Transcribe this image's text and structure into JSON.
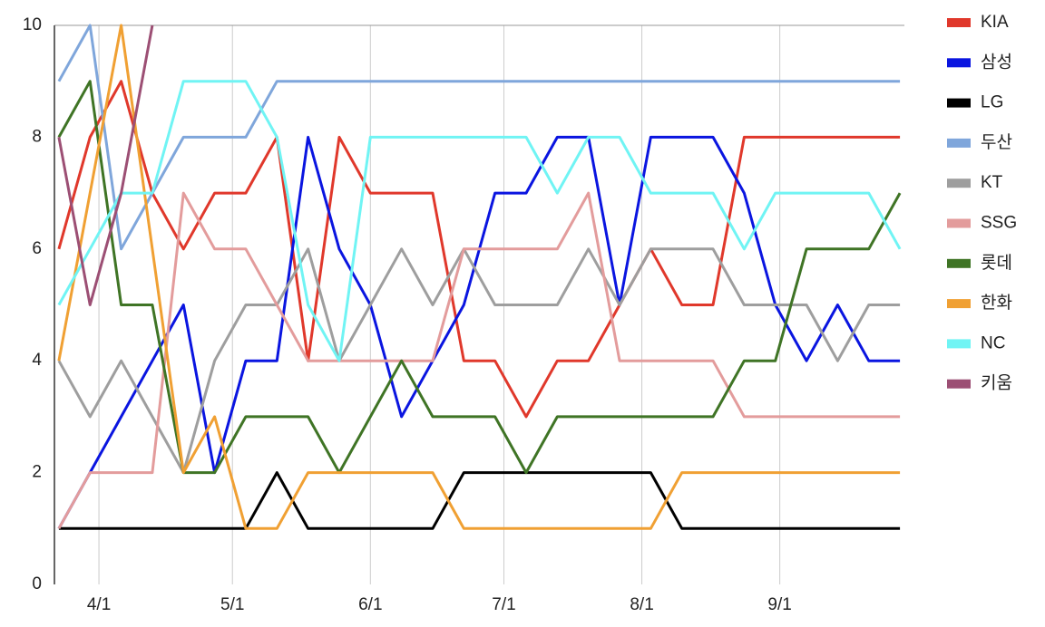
{
  "chart_data": {
    "type": "line",
    "x": [
      0,
      7,
      14,
      21,
      28,
      35,
      42,
      49,
      56,
      63,
      70,
      77,
      84,
      91,
      98,
      105,
      112,
      119,
      126,
      133,
      140,
      147,
      154,
      161,
      168,
      175,
      182,
      189
    ],
    "xlim": [
      -1,
      190
    ],
    "xticks": [
      {
        "value": 9,
        "label": "4/1"
      },
      {
        "value": 39,
        "label": "5/1"
      },
      {
        "value": 70,
        "label": "6/1"
      },
      {
        "value": 100,
        "label": "7/1"
      },
      {
        "value": 131,
        "label": "8/1"
      },
      {
        "value": 162,
        "label": "9/1"
      }
    ],
    "ylim": [
      0,
      10
    ],
    "yticks": [
      0,
      2,
      4,
      6,
      8,
      10
    ],
    "grid": true,
    "legend": "right",
    "series": [
      {
        "name": "KIA",
        "color": "#e0382b",
        "values": [
          6,
          8,
          9,
          7,
          6,
          7,
          7,
          8,
          4,
          8,
          7,
          7,
          7,
          4,
          4,
          3,
          4,
          4,
          5,
          6,
          5,
          5,
          8,
          8,
          8,
          8,
          8,
          8
        ]
      },
      {
        "name": "삼성",
        "color": "#0a15e0",
        "values": [
          1,
          2,
          3,
          4,
          5,
          2,
          4,
          4,
          8,
          6,
          5,
          3,
          4,
          5,
          7,
          7,
          8,
          8,
          5,
          8,
          8,
          8,
          7,
          5,
          4,
          5,
          4,
          4
        ]
      },
      {
        "name": "LG",
        "color": "#000000",
        "values": [
          1,
          1,
          1,
          1,
          1,
          1,
          1,
          2,
          1,
          1,
          1,
          1,
          1,
          2,
          2,
          2,
          2,
          2,
          2,
          2,
          1,
          1,
          1,
          1,
          1,
          1,
          1,
          1
        ]
      },
      {
        "name": "두산",
        "color": "#7fa6db",
        "values": [
          9,
          10,
          6,
          7,
          8,
          8,
          8,
          9,
          9,
          9,
          9,
          9,
          9,
          9,
          9,
          9,
          9,
          9,
          9,
          9,
          9,
          9,
          9,
          9,
          9,
          9,
          9,
          9
        ]
      },
      {
        "name": "KT",
        "color": "#9e9e9e",
        "values": [
          4,
          3,
          4,
          3,
          2,
          4,
          5,
          5,
          6,
          4,
          5,
          6,
          5,
          6,
          5,
          5,
          5,
          6,
          5,
          6,
          6,
          6,
          5,
          5,
          5,
          4,
          5,
          5
        ]
      },
      {
        "name": "SSG",
        "color": "#e39c9c",
        "values": [
          1,
          2,
          2,
          2,
          7,
          6,
          6,
          5,
          4,
          4,
          4,
          4,
          4,
          6,
          6,
          6,
          6,
          7,
          4,
          4,
          4,
          4,
          3,
          3,
          3,
          3,
          3,
          3
        ]
      },
      {
        "name": "롯데",
        "color": "#3f7425",
        "values": [
          8,
          9,
          5,
          5,
          2,
          2,
          3,
          3,
          3,
          2,
          3,
          4,
          3,
          3,
          3,
          2,
          3,
          3,
          3,
          3,
          3,
          3,
          4,
          4,
          6,
          6,
          6,
          7
        ]
      },
      {
        "name": "한화",
        "color": "#f0a033",
        "values": [
          4,
          7,
          10,
          6,
          2,
          3,
          1,
          1,
          2,
          2,
          2,
          2,
          2,
          1,
          1,
          1,
          1,
          1,
          1,
          1,
          2,
          2,
          2,
          2,
          2,
          2,
          2,
          2
        ]
      },
      {
        "name": "NC",
        "color": "#70f4f4",
        "values": [
          5,
          6,
          7,
          7,
          9,
          9,
          9,
          8,
          5,
          4,
          8,
          8,
          8,
          8,
          8,
          8,
          7,
          8,
          8,
          7,
          7,
          7,
          6,
          7,
          7,
          7,
          7,
          6
        ]
      },
      {
        "name": "키움",
        "color": "#9c4f74",
        "values": [
          8,
          5,
          7,
          10,
          null,
          null,
          null,
          null,
          null,
          null,
          null,
          null,
          null,
          null,
          null,
          null,
          null,
          null,
          null,
          null,
          null,
          null,
          null,
          null,
          null,
          null,
          null,
          null
        ]
      }
    ]
  }
}
